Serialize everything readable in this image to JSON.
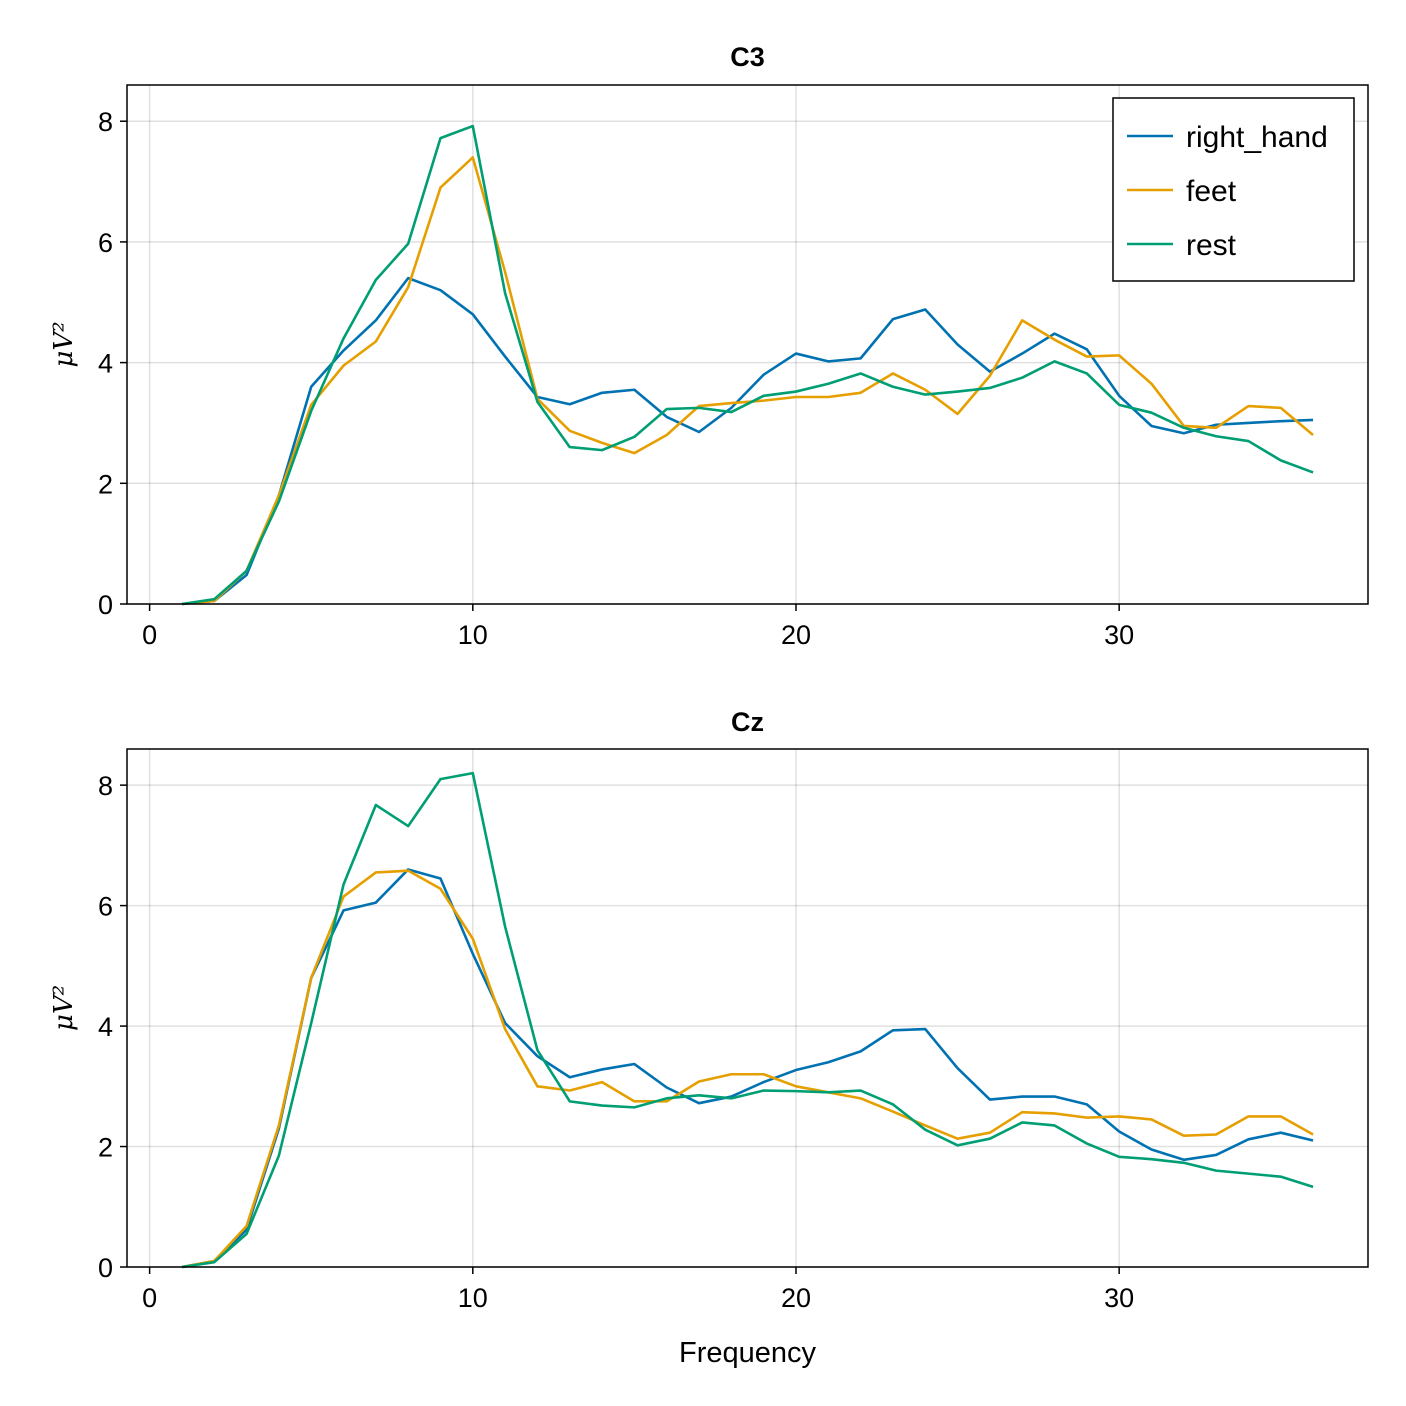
{
  "colors": {
    "right_hand": "#0072b2",
    "feet": "#e69f00",
    "rest": "#009e73"
  },
  "chart_data": [
    {
      "type": "line",
      "title": "C3",
      "xlabel": "",
      "ylabel": "μV²",
      "xlim": [
        -0.7,
        37.7
      ],
      "ylim": [
        0,
        8.6
      ],
      "xticks": [
        0,
        10,
        20,
        30
      ],
      "yticks": [
        0,
        2,
        4,
        6,
        8
      ],
      "grid": true,
      "legend": "top-right",
      "x": [
        1,
        2,
        3,
        4,
        5,
        6,
        7,
        8,
        9,
        10,
        11,
        12,
        13,
        14,
        15,
        16,
        17,
        18,
        19,
        20,
        21,
        22,
        23,
        24,
        25,
        26,
        27,
        28,
        29,
        30,
        31,
        32,
        33,
        34,
        35,
        36
      ],
      "series": [
        {
          "name": "right_hand",
          "values": [
            0,
            0.05,
            0.48,
            1.8,
            3.6,
            4.2,
            4.7,
            5.4,
            5.2,
            4.8,
            4.1,
            3.43,
            3.31,
            3.5,
            3.55,
            3.1,
            2.85,
            3.25,
            3.8,
            4.15,
            4.02,
            4.07,
            4.72,
            4.88,
            4.3,
            3.85,
            4.15,
            4.48,
            4.22,
            3.45,
            2.95,
            2.83,
            2.97,
            3.0,
            3.03,
            3.05
          ]
        },
        {
          "name": "feet",
          "values": [
            0,
            0.05,
            0.55,
            1.8,
            3.3,
            3.95,
            4.35,
            5.25,
            6.9,
            7.4,
            5.5,
            3.4,
            2.87,
            2.67,
            2.5,
            2.8,
            3.28,
            3.33,
            3.37,
            3.43,
            3.43,
            3.5,
            3.82,
            3.55,
            3.15,
            3.78,
            4.7,
            4.38,
            4.1,
            4.12,
            3.65,
            2.95,
            2.92,
            3.28,
            3.25,
            2.8
          ]
        },
        {
          "name": "rest",
          "values": [
            0,
            0.08,
            0.55,
            1.7,
            3.2,
            4.4,
            5.37,
            5.97,
            7.72,
            7.92,
            5.15,
            3.35,
            2.6,
            2.55,
            2.77,
            3.23,
            3.25,
            3.18,
            3.45,
            3.52,
            3.65,
            3.82,
            3.6,
            3.47,
            3.52,
            3.58,
            3.75,
            4.02,
            3.82,
            3.3,
            3.17,
            2.92,
            2.78,
            2.7,
            2.38,
            2.18
          ]
        }
      ]
    },
    {
      "type": "line",
      "title": "Cz",
      "xlabel": "Frequency",
      "ylabel": "μV²",
      "xlim": [
        -0.7,
        37.7
      ],
      "ylim": [
        0,
        8.6
      ],
      "xticks": [
        0,
        10,
        20,
        30
      ],
      "yticks": [
        0,
        2,
        4,
        6,
        8
      ],
      "grid": true,
      "x": [
        1,
        2,
        3,
        4,
        5,
        6,
        7,
        8,
        9,
        10,
        11,
        12,
        13,
        14,
        15,
        16,
        17,
        18,
        19,
        20,
        21,
        22,
        23,
        24,
        25,
        26,
        27,
        28,
        29,
        30,
        31,
        32,
        33,
        34,
        35,
        36
      ],
      "series": [
        {
          "name": "right_hand",
          "values": [
            0,
            0.1,
            0.62,
            2.3,
            4.8,
            5.92,
            6.05,
            6.6,
            6.45,
            5.2,
            4.05,
            3.5,
            3.15,
            3.28,
            3.37,
            2.98,
            2.72,
            2.83,
            3.07,
            3.27,
            3.4,
            3.58,
            3.93,
            3.95,
            3.3,
            2.78,
            2.83,
            2.83,
            2.7,
            2.25,
            1.95,
            1.78,
            1.86,
            2.12,
            2.23,
            2.1
          ]
        },
        {
          "name": "feet",
          "values": [
            0,
            0.1,
            0.68,
            2.35,
            4.8,
            6.15,
            6.55,
            6.58,
            6.28,
            5.45,
            3.95,
            3.0,
            2.93,
            3.07,
            2.75,
            2.75,
            3.08,
            3.2,
            3.2,
            3.0,
            2.9,
            2.8,
            2.58,
            2.35,
            2.13,
            2.23,
            2.57,
            2.55,
            2.48,
            2.5,
            2.45,
            2.18,
            2.2,
            2.5,
            2.5,
            2.2
          ]
        },
        {
          "name": "rest",
          "values": [
            0,
            0.08,
            0.55,
            1.85,
            4.05,
            6.35,
            7.67,
            7.32,
            8.1,
            8.2,
            5.65,
            3.6,
            2.75,
            2.68,
            2.65,
            2.8,
            2.85,
            2.8,
            2.93,
            2.92,
            2.9,
            2.93,
            2.7,
            2.28,
            2.02,
            2.13,
            2.4,
            2.35,
            2.05,
            1.83,
            1.79,
            1.73,
            1.6,
            1.55,
            1.5,
            1.33
          ]
        }
      ]
    }
  ]
}
